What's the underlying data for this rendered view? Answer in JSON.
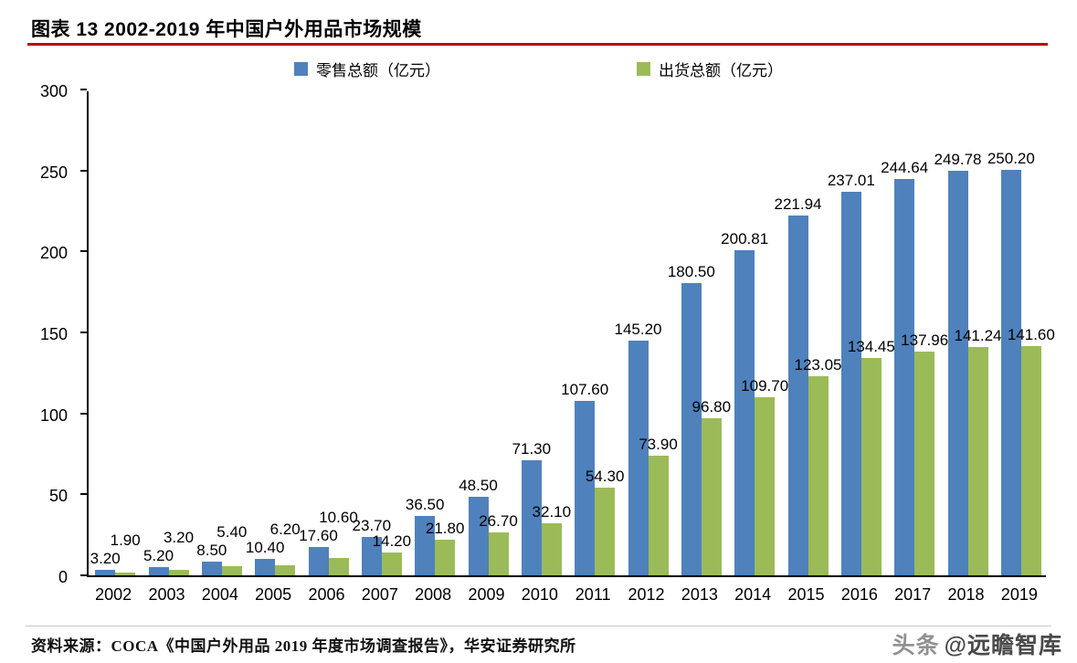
{
  "header": {
    "title": "图表 13 2002-2019 年中国户外用品市场规模",
    "rule_color": "#c00000"
  },
  "legend": [
    {
      "label": "零售总额（亿元）",
      "color": "#4f81bd"
    },
    {
      "label": "出货总额（亿元）",
      "color": "#9bbb59"
    }
  ],
  "chart_data": {
    "type": "bar",
    "title": "2002-2019 年中国户外用品市场规模",
    "categories": [
      "2002",
      "2003",
      "2004",
      "2005",
      "2006",
      "2007",
      "2008",
      "2009",
      "2010",
      "2011",
      "2012",
      "2013",
      "2014",
      "2015",
      "2016",
      "2017",
      "2018",
      "2019"
    ],
    "series": [
      {
        "name": "零售总额（亿元）",
        "color": "#4f81bd",
        "values": [
          3.2,
          5.2,
          8.5,
          10.4,
          17.6,
          23.7,
          36.5,
          48.5,
          71.3,
          107.6,
          145.2,
          180.5,
          200.81,
          221.94,
          237.01,
          244.64,
          249.78,
          250.2
        ],
        "labels": [
          "3.20",
          "5.20",
          "8.50",
          "10.40",
          "17.60",
          "23.70",
          "36.50",
          "48.50",
          "71.30",
          "107.60",
          "145.20",
          "180.50",
          "200.81",
          "221.94",
          "237.01",
          "244.64",
          "249.78",
          "250.20"
        ]
      },
      {
        "name": "出货总额（亿元）",
        "color": "#9bbb59",
        "values": [
          1.9,
          3.2,
          5.4,
          6.2,
          10.6,
          14.2,
          21.8,
          26.7,
          32.1,
          54.3,
          73.9,
          96.8,
          109.7,
          123.05,
          134.45,
          137.96,
          141.24,
          141.6
        ],
        "labels": [
          "1.90",
          "3.20",
          "5.40",
          "6.20",
          "10.60",
          "14.20",
          "21.80",
          "26.70",
          "32.10",
          "54.30",
          "73.90",
          "96.80",
          "109.70",
          "123.05",
          "134.45",
          "137.96",
          "141.24",
          "141.60"
        ]
      }
    ],
    "xlabel": "",
    "ylabel": "",
    "ylim": [
      0,
      300
    ],
    "yticks": [
      "0",
      "50",
      "100",
      "150",
      "200",
      "250",
      "300"
    ],
    "grid": false,
    "legend_position": "top"
  },
  "footer": {
    "source": "资料来源：COCA《中国户外用品 2019 年度市场调查报告》，华安证券研究所"
  },
  "watermark": {
    "prefix": "头条",
    "handle": "@远瞻智库"
  }
}
